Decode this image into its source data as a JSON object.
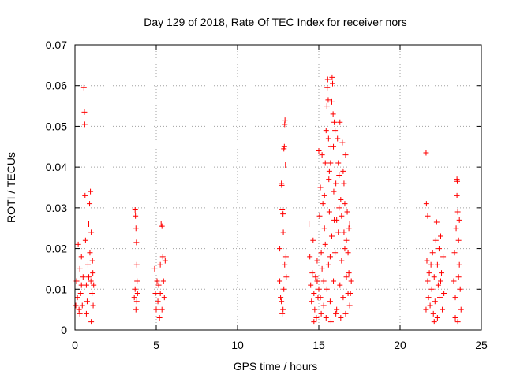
{
  "chart_data": {
    "type": "scatter",
    "title": "Day 129 of 2018, Rate Of TEC Index for receiver nors",
    "xlabel": "GPS time / hours",
    "ylabel": "ROTI / TECUs",
    "xlim": [
      0,
      25
    ],
    "ylim": [
      0,
      0.07
    ],
    "xticks": [
      0,
      5,
      10,
      15,
      20,
      25
    ],
    "xtick_labels": [
      "0",
      "5",
      "10",
      "15",
      "20",
      "25"
    ],
    "yticks": [
      0,
      0.01,
      0.02,
      0.03,
      0.04,
      0.05,
      0.06,
      0.07
    ],
    "ytick_labels": [
      "0",
      "0.01",
      "0.02",
      "0.03",
      "0.04",
      "0.05",
      "0.06",
      "0.07"
    ],
    "grid": true,
    "marker": "+",
    "color": "#ff0000",
    "series": [
      {
        "name": "ROTI",
        "points": [
          [
            0.05,
            0.006
          ],
          [
            0.1,
            0.012
          ],
          [
            0.15,
            0.008
          ],
          [
            0.2,
            0.021
          ],
          [
            0.25,
            0.005
          ],
          [
            0.3,
            0.015
          ],
          [
            0.35,
            0.009
          ],
          [
            0.4,
            0.018
          ],
          [
            0.45,
            0.006
          ],
          [
            0.5,
            0.013
          ],
          [
            0.55,
            0.0595
          ],
          [
            0.58,
            0.0535
          ],
          [
            0.6,
            0.0505
          ],
          [
            0.62,
            0.033
          ],
          [
            0.65,
            0.022
          ],
          [
            0.7,
            0.011
          ],
          [
            0.75,
            0.007
          ],
          [
            0.8,
            0.016
          ],
          [
            0.85,
            0.026
          ],
          [
            0.9,
            0.031
          ],
          [
            0.92,
            0.019
          ],
          [
            0.95,
            0.034
          ],
          [
            0.98,
            0.012
          ],
          [
            1.0,
            0.024
          ],
          [
            1.05,
            0.009
          ],
          [
            1.08,
            0.017
          ],
          [
            1.1,
            0.014
          ],
          [
            1.12,
            0.006
          ],
          [
            1.15,
            0.011
          ],
          [
            0.3,
            0.004
          ],
          [
            0.7,
            0.004
          ],
          [
            1.0,
            0.002
          ],
          [
            0.85,
            0.013
          ],
          [
            0.4,
            0.011
          ],
          [
            3.65,
            0.008
          ],
          [
            3.7,
            0.0295
          ],
          [
            3.72,
            0.028
          ],
          [
            3.75,
            0.025
          ],
          [
            3.78,
            0.0215
          ],
          [
            3.8,
            0.016
          ],
          [
            3.82,
            0.012
          ],
          [
            3.85,
            0.009
          ],
          [
            3.75,
            0.005
          ],
          [
            3.7,
            0.01
          ],
          [
            3.8,
            0.007
          ],
          [
            4.9,
            0.015
          ],
          [
            4.95,
            0.009
          ],
          [
            5.0,
            0.005
          ],
          [
            5.05,
            0.012
          ],
          [
            5.1,
            0.007
          ],
          [
            5.15,
            0.011
          ],
          [
            5.2,
            0.003
          ],
          [
            5.25,
            0.016
          ],
          [
            5.3,
            0.026
          ],
          [
            5.35,
            0.0255
          ],
          [
            5.4,
            0.018
          ],
          [
            5.45,
            0.012
          ],
          [
            5.5,
            0.008
          ],
          [
            5.55,
            0.017
          ],
          [
            5.35,
            0.005
          ],
          [
            5.25,
            0.009
          ],
          [
            12.6,
            0.012
          ],
          [
            12.65,
            0.008
          ],
          [
            12.7,
            0.036
          ],
          [
            12.72,
            0.0355
          ],
          [
            12.75,
            0.0295
          ],
          [
            12.8,
            0.0285
          ],
          [
            12.82,
            0.024
          ],
          [
            12.85,
            0.0445
          ],
          [
            12.88,
            0.045
          ],
          [
            12.9,
            0.0505
          ],
          [
            12.92,
            0.0515
          ],
          [
            12.95,
            0.0405
          ],
          [
            12.98,
            0.018
          ],
          [
            13.0,
            0.013
          ],
          [
            12.7,
            0.007
          ],
          [
            12.8,
            0.005
          ],
          [
            12.9,
            0.016
          ],
          [
            12.75,
            0.004
          ],
          [
            12.6,
            0.02
          ],
          [
            12.85,
            0.01
          ],
          [
            14.4,
            0.026
          ],
          [
            14.45,
            0.018
          ],
          [
            14.5,
            0.011
          ],
          [
            14.55,
            0.007
          ],
          [
            14.6,
            0.014
          ],
          [
            14.65,
            0.022
          ],
          [
            14.7,
            0.009
          ],
          [
            14.75,
            0.005
          ],
          [
            14.8,
            0.013
          ],
          [
            14.85,
            0.003
          ],
          [
            14.9,
            0.017
          ],
          [
            14.95,
            0.008
          ],
          [
            15.0,
            0.044
          ],
          [
            15.05,
            0.028
          ],
          [
            15.1,
            0.035
          ],
          [
            15.15,
            0.019
          ],
          [
            15.2,
            0.043
          ],
          [
            15.25,
            0.031
          ],
          [
            15.3,
            0.012
          ],
          [
            15.35,
            0.025
          ],
          [
            15.4,
            0.041
          ],
          [
            15.45,
            0.049
          ],
          [
            15.5,
            0.055
          ],
          [
            15.52,
            0.0595
          ],
          [
            15.55,
            0.0615
          ],
          [
            15.58,
            0.0565
          ],
          [
            15.6,
            0.047
          ],
          [
            15.62,
            0.037
          ],
          [
            15.65,
            0.029
          ],
          [
            15.7,
            0.018
          ],
          [
            15.72,
            0.041
          ],
          [
            15.75,
            0.045
          ],
          [
            15.8,
            0.056
          ],
          [
            15.82,
            0.062
          ],
          [
            15.85,
            0.0605
          ],
          [
            15.88,
            0.053
          ],
          [
            15.9,
            0.045
          ],
          [
            15.92,
            0.034
          ],
          [
            15.95,
            0.051
          ],
          [
            16.0,
            0.049
          ],
          [
            16.05,
            0.036
          ],
          [
            16.1,
            0.027
          ],
          [
            16.15,
            0.047
          ],
          [
            16.2,
            0.041
          ],
          [
            16.25,
            0.038
          ],
          [
            16.3,
            0.051
          ],
          [
            16.35,
            0.032
          ],
          [
            16.4,
            0.028
          ],
          [
            16.45,
            0.046
          ],
          [
            16.5,
            0.039
          ],
          [
            16.55,
            0.024
          ],
          [
            16.6,
            0.031
          ],
          [
            16.65,
            0.043
          ],
          [
            16.7,
            0.022
          ],
          [
            16.75,
            0.029
          ],
          [
            16.8,
            0.019
          ],
          [
            16.85,
            0.014
          ],
          [
            16.9,
            0.026
          ],
          [
            16.95,
            0.009
          ],
          [
            17.0,
            0.012
          ],
          [
            15.1,
            0.008
          ],
          [
            15.3,
            0.006
          ],
          [
            15.5,
            0.01
          ],
          [
            15.7,
            0.007
          ],
          [
            15.9,
            0.012
          ],
          [
            16.1,
            0.005
          ],
          [
            16.3,
            0.011
          ],
          [
            16.5,
            0.008
          ],
          [
            16.7,
            0.013
          ],
          [
            16.9,
            0.006
          ],
          [
            15.2,
            0.015
          ],
          [
            15.4,
            0.021
          ],
          [
            15.6,
            0.016
          ],
          [
            15.8,
            0.023
          ],
          [
            16.0,
            0.019
          ],
          [
            16.2,
            0.024
          ],
          [
            16.4,
            0.017
          ],
          [
            16.6,
            0.02
          ],
          [
            16.8,
            0.009
          ],
          [
            15.0,
            0.01
          ],
          [
            14.9,
            0.012
          ],
          [
            15.15,
            0.004
          ],
          [
            15.45,
            0.003
          ],
          [
            15.75,
            0.002
          ],
          [
            16.05,
            0.004
          ],
          [
            16.35,
            0.003
          ],
          [
            16.65,
            0.004
          ],
          [
            14.7,
            0.002
          ],
          [
            15.35,
            0.033
          ],
          [
            15.65,
            0.039
          ],
          [
            15.95,
            0.027
          ],
          [
            16.25,
            0.03
          ],
          [
            16.55,
            0.036
          ],
          [
            16.85,
            0.025
          ],
          [
            21.6,
            0.0435
          ],
          [
            21.62,
            0.031
          ],
          [
            21.65,
            0.017
          ],
          [
            21.7,
            0.012
          ],
          [
            21.75,
            0.008
          ],
          [
            21.8,
            0.014
          ],
          [
            21.85,
            0.006
          ],
          [
            21.9,
            0.016
          ],
          [
            21.95,
            0.01
          ],
          [
            22.0,
            0.019
          ],
          [
            22.05,
            0.004
          ],
          [
            22.1,
            0.013
          ],
          [
            22.15,
            0.007
          ],
          [
            22.2,
            0.022
          ],
          [
            22.25,
            0.0265
          ],
          [
            22.3,
            0.016
          ],
          [
            22.35,
            0.011
          ],
          [
            22.4,
            0.02
          ],
          [
            22.45,
            0.008
          ],
          [
            22.5,
            0.023
          ],
          [
            22.55,
            0.014
          ],
          [
            22.6,
            0.005
          ],
          [
            22.65,
            0.018
          ],
          [
            22.7,
            0.009
          ],
          [
            22.1,
            0.002
          ],
          [
            22.3,
            0.003
          ],
          [
            21.6,
            0.005
          ],
          [
            22.5,
            0.012
          ],
          [
            21.7,
            0.028
          ],
          [
            23.3,
            0.012
          ],
          [
            23.35,
            0.019
          ],
          [
            23.4,
            0.008
          ],
          [
            23.45,
            0.025
          ],
          [
            23.5,
            0.037
          ],
          [
            23.52,
            0.0365
          ],
          [
            23.55,
            0.029
          ],
          [
            23.6,
            0.022
          ],
          [
            23.65,
            0.016
          ],
          [
            23.7,
            0.01
          ],
          [
            23.75,
            0.005
          ],
          [
            23.4,
            0.003
          ],
          [
            23.55,
            0.002
          ],
          [
            23.6,
            0.013
          ],
          [
            23.65,
            0.027
          ],
          [
            23.5,
            0.033
          ]
        ]
      }
    ]
  }
}
